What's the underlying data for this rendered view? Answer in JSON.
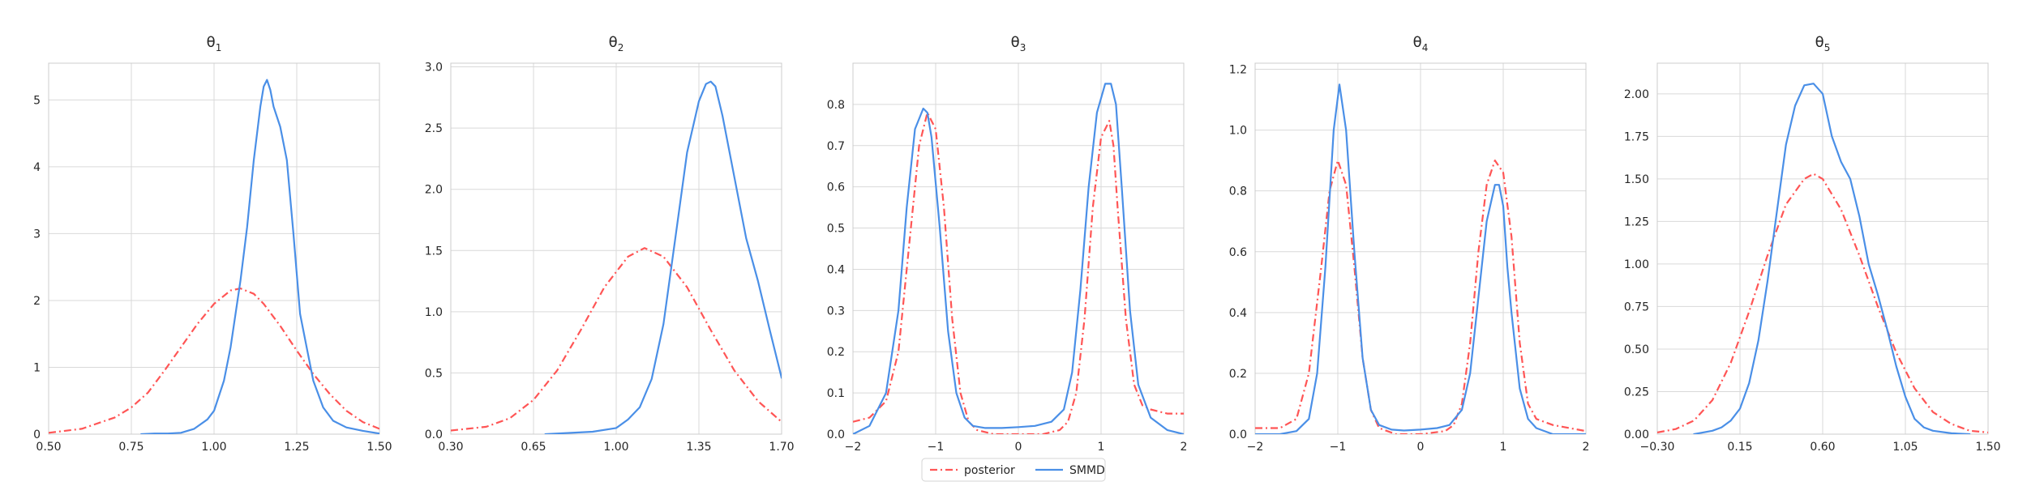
{
  "colors": {
    "posterior": "#ff5555",
    "smmd": "#4a8fe7",
    "grid": "#d9d9d9",
    "frame": "#cccccc",
    "text": "#262626"
  },
  "legend": {
    "placement": "bottom-center",
    "entries": [
      {
        "label": "posterior",
        "color": "#ff5555",
        "style": "dash-dot"
      },
      {
        "label": "SMMD",
        "color": "#4a8fe7",
        "style": "solid"
      }
    ]
  },
  "chart_data": [
    {
      "type": "line",
      "title_base": "θ",
      "title_sub": "1",
      "xlim": [
        0.5,
        1.5
      ],
      "ylim": [
        0,
        5.55
      ],
      "xticks": [
        0.5,
        0.75,
        1.0,
        1.25,
        1.5
      ],
      "xtick_labels": [
        "0.50",
        "0.75",
        "1.00",
        "1.25",
        "1.50"
      ],
      "yticks": [
        0,
        1,
        2,
        3,
        4,
        5
      ],
      "ytick_labels": [
        "0",
        "1",
        "2",
        "3",
        "4",
        "5"
      ],
      "grid": true,
      "series": [
        {
          "name": "posterior",
          "style": "dash-dot",
          "color": "#ff5555",
          "x": [
            0.5,
            0.6,
            0.7,
            0.75,
            0.8,
            0.85,
            0.9,
            0.95,
            1.0,
            1.05,
            1.08,
            1.12,
            1.15,
            1.2,
            1.25,
            1.3,
            1.35,
            1.4,
            1.45,
            1.5
          ],
          "y": [
            0.02,
            0.08,
            0.25,
            0.4,
            0.62,
            0.95,
            1.3,
            1.65,
            1.95,
            2.15,
            2.18,
            2.1,
            1.95,
            1.62,
            1.25,
            0.9,
            0.6,
            0.35,
            0.18,
            0.08
          ]
        },
        {
          "name": "SMMD",
          "style": "solid",
          "color": "#4a8fe7",
          "x": [
            0.78,
            0.82,
            0.86,
            0.9,
            0.94,
            0.98,
            1.0,
            1.03,
            1.05,
            1.08,
            1.1,
            1.12,
            1.14,
            1.15,
            1.16,
            1.17,
            1.18,
            1.2,
            1.22,
            1.24,
            1.26,
            1.28,
            1.3,
            1.33,
            1.36,
            1.4,
            1.45,
            1.5
          ],
          "y": [
            0,
            0.01,
            0.01,
            0.02,
            0.08,
            0.22,
            0.35,
            0.8,
            1.3,
            2.3,
            3.1,
            4.1,
            4.9,
            5.2,
            5.3,
            5.15,
            4.9,
            4.6,
            4.1,
            3.0,
            1.8,
            1.3,
            0.8,
            0.4,
            0.2,
            0.1,
            0.05,
            0.01
          ]
        }
      ]
    },
    {
      "type": "line",
      "title_base": "θ",
      "title_sub": "2",
      "xlim": [
        0.3,
        1.7
      ],
      "ylim": [
        0,
        3.03
      ],
      "xticks": [
        0.3,
        0.65,
        1.0,
        1.35,
        1.7
      ],
      "xtick_labels": [
        "0.30",
        "0.65",
        "1.00",
        "1.35",
        "1.70"
      ],
      "yticks": [
        0,
        0.5,
        1.0,
        1.5,
        2.0,
        2.5,
        3.0
      ],
      "ytick_labels": [
        "0.0",
        "0.5",
        "1.0",
        "1.5",
        "2.0",
        "2.5",
        "3.0"
      ],
      "grid": true,
      "series": [
        {
          "name": "posterior",
          "style": "dash-dot",
          "color": "#ff5555",
          "x": [
            0.3,
            0.45,
            0.55,
            0.65,
            0.75,
            0.85,
            0.95,
            1.05,
            1.12,
            1.2,
            1.3,
            1.4,
            1.5,
            1.6,
            1.7
          ],
          "y": [
            0.03,
            0.06,
            0.13,
            0.28,
            0.52,
            0.85,
            1.2,
            1.45,
            1.52,
            1.45,
            1.2,
            0.85,
            0.52,
            0.27,
            0.1
          ]
        },
        {
          "name": "SMMD",
          "style": "solid",
          "color": "#4a8fe7",
          "x": [
            0.7,
            0.8,
            0.9,
            1.0,
            1.05,
            1.1,
            1.15,
            1.2,
            1.25,
            1.3,
            1.35,
            1.38,
            1.4,
            1.42,
            1.45,
            1.5,
            1.55,
            1.6,
            1.65,
            1.7
          ],
          "y": [
            0,
            0.01,
            0.02,
            0.05,
            0.12,
            0.22,
            0.45,
            0.9,
            1.6,
            2.3,
            2.72,
            2.86,
            2.88,
            2.84,
            2.6,
            2.1,
            1.6,
            1.25,
            0.85,
            0.46
          ]
        }
      ]
    },
    {
      "type": "line",
      "title_base": "θ",
      "title_sub": "3",
      "xlim": [
        -2,
        2
      ],
      "ylim": [
        0,
        0.9
      ],
      "xticks": [
        -2,
        -1,
        0,
        1,
        2
      ],
      "xtick_labels": [
        "−2",
        "−1",
        "0",
        "1",
        "2"
      ],
      "yticks": [
        0,
        0.1,
        0.2,
        0.3,
        0.4,
        0.5,
        0.6,
        0.7,
        0.8
      ],
      "ytick_labels": [
        "0.0",
        "0.1",
        "0.2",
        "0.3",
        "0.4",
        "0.5",
        "0.6",
        "0.7",
        "0.8"
      ],
      "grid": true,
      "series": [
        {
          "name": "posterior",
          "style": "dash-dot",
          "color": "#ff5555",
          "x": [
            -2,
            -1.8,
            -1.6,
            -1.45,
            -1.3,
            -1.2,
            -1.1,
            -1.0,
            -0.9,
            -0.8,
            -0.7,
            -0.6,
            -0.5,
            -0.3,
            0,
            0.3,
            0.5,
            0.6,
            0.7,
            0.8,
            0.9,
            1.0,
            1.1,
            1.15,
            1.2,
            1.3,
            1.4,
            1.5,
            1.6,
            1.8,
            2.0
          ],
          "y": [
            0.03,
            0.04,
            0.08,
            0.2,
            0.5,
            0.7,
            0.78,
            0.74,
            0.55,
            0.28,
            0.1,
            0.03,
            0.01,
            0,
            0,
            0,
            0.01,
            0.03,
            0.1,
            0.28,
            0.55,
            0.72,
            0.76,
            0.7,
            0.55,
            0.28,
            0.12,
            0.07,
            0.06,
            0.05,
            0.05
          ]
        },
        {
          "name": "SMMD",
          "style": "solid",
          "color": "#4a8fe7",
          "x": [
            -2,
            -1.8,
            -1.6,
            -1.45,
            -1.35,
            -1.25,
            -1.15,
            -1.1,
            -1.05,
            -0.95,
            -0.85,
            -0.75,
            -0.65,
            -0.55,
            -0.4,
            -0.2,
            0,
            0.2,
            0.4,
            0.55,
            0.65,
            0.75,
            0.85,
            0.95,
            1.05,
            1.12,
            1.18,
            1.25,
            1.35,
            1.45,
            1.6,
            1.8,
            2.0
          ],
          "y": [
            0.0,
            0.02,
            0.1,
            0.3,
            0.55,
            0.74,
            0.79,
            0.78,
            0.72,
            0.5,
            0.25,
            0.1,
            0.04,
            0.02,
            0.015,
            0.015,
            0.017,
            0.02,
            0.03,
            0.06,
            0.15,
            0.35,
            0.6,
            0.78,
            0.85,
            0.85,
            0.8,
            0.6,
            0.3,
            0.12,
            0.04,
            0.01,
            0.0
          ]
        }
      ]
    },
    {
      "type": "line",
      "title_base": "θ",
      "title_sub": "4",
      "xlim": [
        -2,
        2
      ],
      "ylim": [
        0,
        1.22
      ],
      "xticks": [
        -2,
        -1,
        0,
        1,
        2
      ],
      "xtick_labels": [
        "−2",
        "−1",
        "0",
        "1",
        "2"
      ],
      "yticks": [
        0,
        0.2,
        0.4,
        0.6,
        0.8,
        1.0,
        1.2
      ],
      "ytick_labels": [
        "0.0",
        "0.2",
        "0.4",
        "0.6",
        "0.8",
        "1.0",
        "1.2"
      ],
      "grid": true,
      "series": [
        {
          "name": "posterior",
          "style": "dash-dot",
          "color": "#ff5555",
          "x": [
            -2,
            -1.7,
            -1.5,
            -1.35,
            -1.2,
            -1.1,
            -1.0,
            -0.9,
            -0.8,
            -0.7,
            -0.6,
            -0.5,
            -0.3,
            0,
            0.3,
            0.4,
            0.5,
            0.6,
            0.7,
            0.8,
            0.9,
            1.0,
            1.1,
            1.2,
            1.3,
            1.4,
            1.6,
            2.0
          ],
          "y": [
            0.02,
            0.02,
            0.05,
            0.2,
            0.55,
            0.8,
            0.9,
            0.82,
            0.55,
            0.25,
            0.08,
            0.02,
            0,
            0,
            0.01,
            0.03,
            0.1,
            0.3,
            0.6,
            0.82,
            0.9,
            0.86,
            0.65,
            0.3,
            0.1,
            0.05,
            0.03,
            0.01
          ]
        },
        {
          "name": "SMMD",
          "style": "solid",
          "color": "#4a8fe7",
          "x": [
            -2,
            -1.7,
            -1.5,
            -1.35,
            -1.25,
            -1.15,
            -1.05,
            -0.98,
            -0.9,
            -0.8,
            -0.7,
            -0.6,
            -0.5,
            -0.35,
            -0.2,
            0,
            0.2,
            0.35,
            0.5,
            0.6,
            0.7,
            0.8,
            0.9,
            0.95,
            1.0,
            1.05,
            1.1,
            1.2,
            1.3,
            1.4,
            1.6,
            2.0
          ],
          "y": [
            0,
            0,
            0.01,
            0.05,
            0.2,
            0.55,
            1.0,
            1.15,
            1.0,
            0.6,
            0.25,
            0.08,
            0.03,
            0.015,
            0.012,
            0.015,
            0.02,
            0.03,
            0.08,
            0.2,
            0.45,
            0.7,
            0.82,
            0.82,
            0.75,
            0.55,
            0.4,
            0.15,
            0.05,
            0.02,
            0.0,
            0.0
          ]
        }
      ]
    },
    {
      "type": "line",
      "title_base": "θ",
      "title_sub": "5",
      "xlim": [
        -0.3,
        1.5
      ],
      "ylim": [
        0,
        2.18
      ],
      "xticks": [
        -0.3,
        0.15,
        0.6,
        1.05,
        1.5
      ],
      "xtick_labels": [
        "−0.30",
        "0.15",
        "0.60",
        "1.05",
        "1.50"
      ],
      "yticks": [
        0,
        0.25,
        0.5,
        0.75,
        1.0,
        1.25,
        1.5,
        1.75,
        2.0
      ],
      "ytick_labels": [
        "0.00",
        "0.25",
        "0.50",
        "0.75",
        "1.00",
        "1.25",
        "1.50",
        "1.75",
        "2.00"
      ],
      "grid": true,
      "series": [
        {
          "name": "posterior",
          "style": "dash-dot",
          "color": "#ff5555",
          "x": [
            -0.3,
            -0.2,
            -0.1,
            0,
            0.1,
            0.2,
            0.3,
            0.4,
            0.5,
            0.55,
            0.6,
            0.7,
            0.8,
            0.9,
            1.0,
            1.1,
            1.2,
            1.3,
            1.4,
            1.5
          ],
          "y": [
            0.01,
            0.03,
            0.08,
            0.2,
            0.42,
            0.72,
            1.05,
            1.35,
            1.5,
            1.53,
            1.5,
            1.32,
            1.05,
            0.75,
            0.48,
            0.27,
            0.13,
            0.06,
            0.02,
            0.01
          ]
        },
        {
          "name": "SMMD",
          "style": "solid",
          "color": "#4a8fe7",
          "x": [
            -0.1,
            0,
            0.05,
            0.1,
            0.15,
            0.2,
            0.25,
            0.3,
            0.35,
            0.4,
            0.45,
            0.5,
            0.55,
            0.6,
            0.65,
            0.7,
            0.75,
            0.8,
            0.85,
            0.9,
            0.95,
            1.0,
            1.05,
            1.1,
            1.15,
            1.2,
            1.3,
            1.4
          ],
          "y": [
            0,
            0.02,
            0.04,
            0.08,
            0.15,
            0.3,
            0.55,
            0.9,
            1.3,
            1.7,
            1.93,
            2.05,
            2.06,
            2.0,
            1.75,
            1.6,
            1.5,
            1.28,
            1.0,
            0.82,
            0.62,
            0.4,
            0.22,
            0.09,
            0.04,
            0.02,
            0.005,
            0.0
          ]
        }
      ]
    }
  ]
}
